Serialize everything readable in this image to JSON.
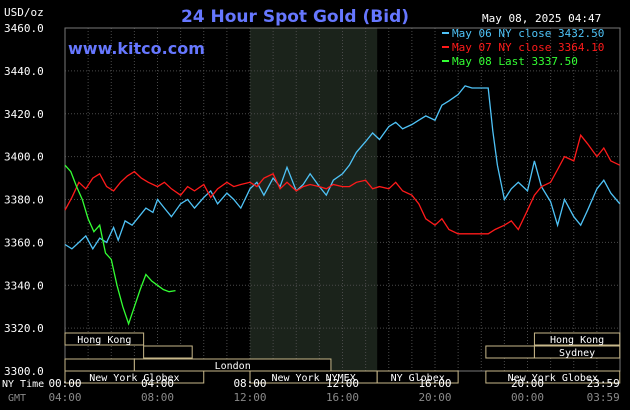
{
  "chart_data": {
    "type": "line",
    "title": "24 Hour Spot Gold (Bid)",
    "website": "www.kitco.com",
    "ylabel": "USD/oz",
    "timestamp": "May 08, 2025 04:47",
    "ylim": [
      3300,
      3460
    ],
    "yticks": [
      "3460.0",
      "3440.0",
      "3420.0",
      "3400.0",
      "3380.0",
      "3360.0",
      "3340.0",
      "3320.0",
      "3300.0"
    ],
    "xlim": [
      0,
      24
    ],
    "xaxis_ny_label": "NY Time",
    "xaxis_gmt_label": "GMT",
    "xticks_ny": [
      "00:00",
      "04:00",
      "08:00",
      "12:00",
      "16:00",
      "20:00",
      "23:59"
    ],
    "xticks_gmt": [
      "04:00",
      "08:00",
      "12:00",
      "16:00",
      "20:00",
      "00:00",
      "03:59"
    ],
    "highlight_hours": [
      8,
      13.5
    ],
    "legend_position": "top-right",
    "series": [
      {
        "name": "May 06 NY close 3432.50",
        "color": "#4fc3f7",
        "x": [
          0,
          0.3,
          0.6,
          0.9,
          1.2,
          1.5,
          1.8,
          2.1,
          2.3,
          2.6,
          2.9,
          3.2,
          3.5,
          3.8,
          4.0,
          4.3,
          4.6,
          5.0,
          5.3,
          5.6,
          6.0,
          6.3,
          6.6,
          7.0,
          7.3,
          7.6,
          8.0,
          8.3,
          8.6,
          9.0,
          9.3,
          9.6,
          10.0,
          10.3,
          10.6,
          11.0,
          11.3,
          11.6,
          12.0,
          12.3,
          12.6,
          13.0,
          13.3,
          13.6,
          14.0,
          14.3,
          14.6,
          15.0,
          15.3,
          15.6,
          16.0,
          16.3,
          16.6,
          17.0,
          17.3,
          17.6,
          18.0,
          18.3,
          18.5,
          18.7,
          19.0,
          19.3,
          19.6,
          20.0,
          20.3,
          20.6,
          21.0,
          21.3,
          21.6,
          22.0,
          22.3,
          22.6,
          23.0,
          23.3,
          23.6,
          23.99
        ],
        "y": [
          3359,
          3357,
          3360,
          3363,
          3357,
          3362,
          3360,
          3367,
          3361,
          3370,
          3368,
          3372,
          3376,
          3374,
          3380,
          3376,
          3372,
          3378,
          3380,
          3376,
          3381,
          3384,
          3378,
          3383,
          3380,
          3376,
          3385,
          3388,
          3382,
          3390,
          3386,
          3395,
          3384,
          3387,
          3392,
          3386,
          3382,
          3389,
          3392,
          3396,
          3402,
          3407,
          3411,
          3408,
          3414,
          3416,
          3413,
          3415,
          3417,
          3419,
          3417,
          3424,
          3426,
          3429,
          3433,
          3432,
          3432,
          3432,
          3412,
          3396,
          3380,
          3385,
          3388,
          3384,
          3398,
          3386,
          3379,
          3368,
          3380,
          3372,
          3368,
          3375,
          3385,
          3389,
          3383,
          3378
        ]
      },
      {
        "name": "May 07 NY close 3364.10",
        "color": "#ff1a1a",
        "x": [
          0,
          0.3,
          0.6,
          0.9,
          1.2,
          1.5,
          1.8,
          2.1,
          2.4,
          2.7,
          3.0,
          3.3,
          3.6,
          4.0,
          4.3,
          4.6,
          5.0,
          5.3,
          5.6,
          6.0,
          6.3,
          6.6,
          7.0,
          7.3,
          7.6,
          8.0,
          8.3,
          8.6,
          9.0,
          9.3,
          9.6,
          10.0,
          10.3,
          10.6,
          11.0,
          11.3,
          11.6,
          12.0,
          12.3,
          12.6,
          13.0,
          13.3,
          13.6,
          14.0,
          14.3,
          14.6,
          15.0,
          15.3,
          15.6,
          16.0,
          16.3,
          16.6,
          17.0,
          17.3,
          17.6,
          18.0,
          18.3,
          18.6,
          19.0,
          19.3,
          19.6,
          20.0,
          20.3,
          20.6,
          21.0,
          21.3,
          21.6,
          22.0,
          22.3,
          22.6,
          23.0,
          23.3,
          23.6,
          23.99
        ],
        "y": [
          3375,
          3381,
          3388,
          3385,
          3390,
          3392,
          3386,
          3384,
          3388,
          3391,
          3393,
          3390,
          3388,
          3386,
          3388,
          3385,
          3382,
          3386,
          3384,
          3387,
          3381,
          3385,
          3388,
          3386,
          3387,
          3388,
          3386,
          3390,
          3392,
          3385,
          3388,
          3384,
          3386,
          3387,
          3386,
          3385,
          3387,
          3386,
          3386,
          3388,
          3389,
          3385,
          3386,
          3385,
          3388,
          3384,
          3382,
          3378,
          3371,
          3368,
          3371,
          3366,
          3364,
          3364,
          3364,
          3364,
          3364,
          3366,
          3368,
          3370,
          3366,
          3375,
          3382,
          3386,
          3388,
          3394,
          3400,
          3398,
          3410,
          3406,
          3400,
          3404,
          3398,
          3396
        ]
      },
      {
        "name": "May 08 Last 3337.50",
        "color": "#33ff33",
        "x": [
          0,
          0.25,
          0.5,
          0.75,
          1.0,
          1.25,
          1.5,
          1.75,
          2.0,
          2.25,
          2.5,
          2.75,
          3.0,
          3.25,
          3.5,
          3.75,
          4.0,
          4.25,
          4.5,
          4.78
        ],
        "y": [
          3396,
          3393,
          3386,
          3380,
          3371,
          3365,
          3368,
          3355,
          3352,
          3340,
          3330,
          3322,
          3330,
          3338,
          3345,
          3342,
          3340,
          3338,
          3337,
          3337.5
        ]
      }
    ],
    "sessions_row1": [
      {
        "label": "Hong Kong",
        "start": 0,
        "end": 3.4
      },
      {
        "label": "Hong Kong",
        "start": 20.3,
        "end": 23.99
      }
    ],
    "sessions_row2": [
      {
        "label": "",
        "start": 3.4,
        "end": 5.5
      },
      {
        "label": "",
        "start": 18.2,
        "end": 20.3
      },
      {
        "label": "Sydney",
        "start": 20.3,
        "end": 23.99
      }
    ],
    "sessions_row3": [
      {
        "label": "",
        "start": 0,
        "end": 3.0
      },
      {
        "label": "London",
        "start": 3.0,
        "end": 11.5
      }
    ],
    "sessions_row4": [
      {
        "label": "New York Globex",
        "start": 0,
        "end": 6.0
      },
      {
        "label": "New York NYMEX",
        "start": 8.0,
        "end": 13.5
      },
      {
        "label": "NY Globex",
        "start": 13.5,
        "end": 17.0
      },
      {
        "label": "New York Globex",
        "start": 18.2,
        "end": 23.99
      }
    ]
  }
}
